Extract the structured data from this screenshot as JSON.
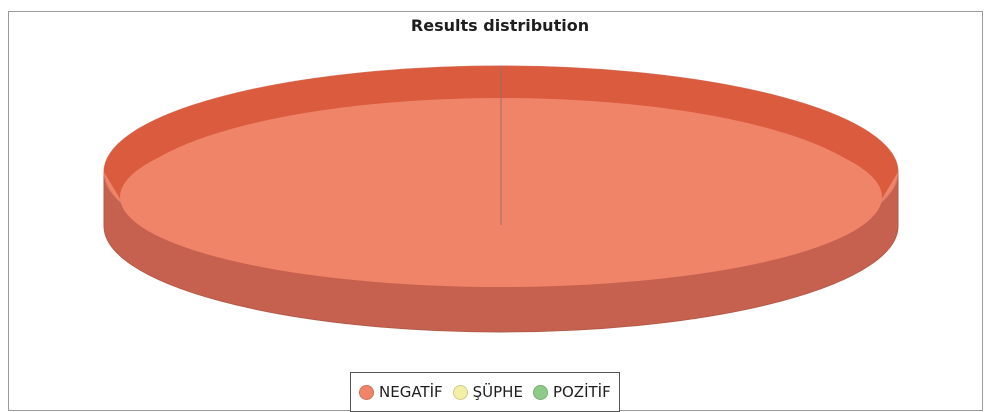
{
  "chart_data": {
    "type": "pie",
    "title": "Results distribution",
    "categories": [
      "NEGATİF",
      "ŞÜPHE",
      "POZİTİF"
    ],
    "values": [
      1,
      0,
      0
    ],
    "colors": [
      "#f08468",
      "#f3f0a6",
      "#8fcb88"
    ],
    "legend_position": "bottom",
    "style": "3d"
  }
}
